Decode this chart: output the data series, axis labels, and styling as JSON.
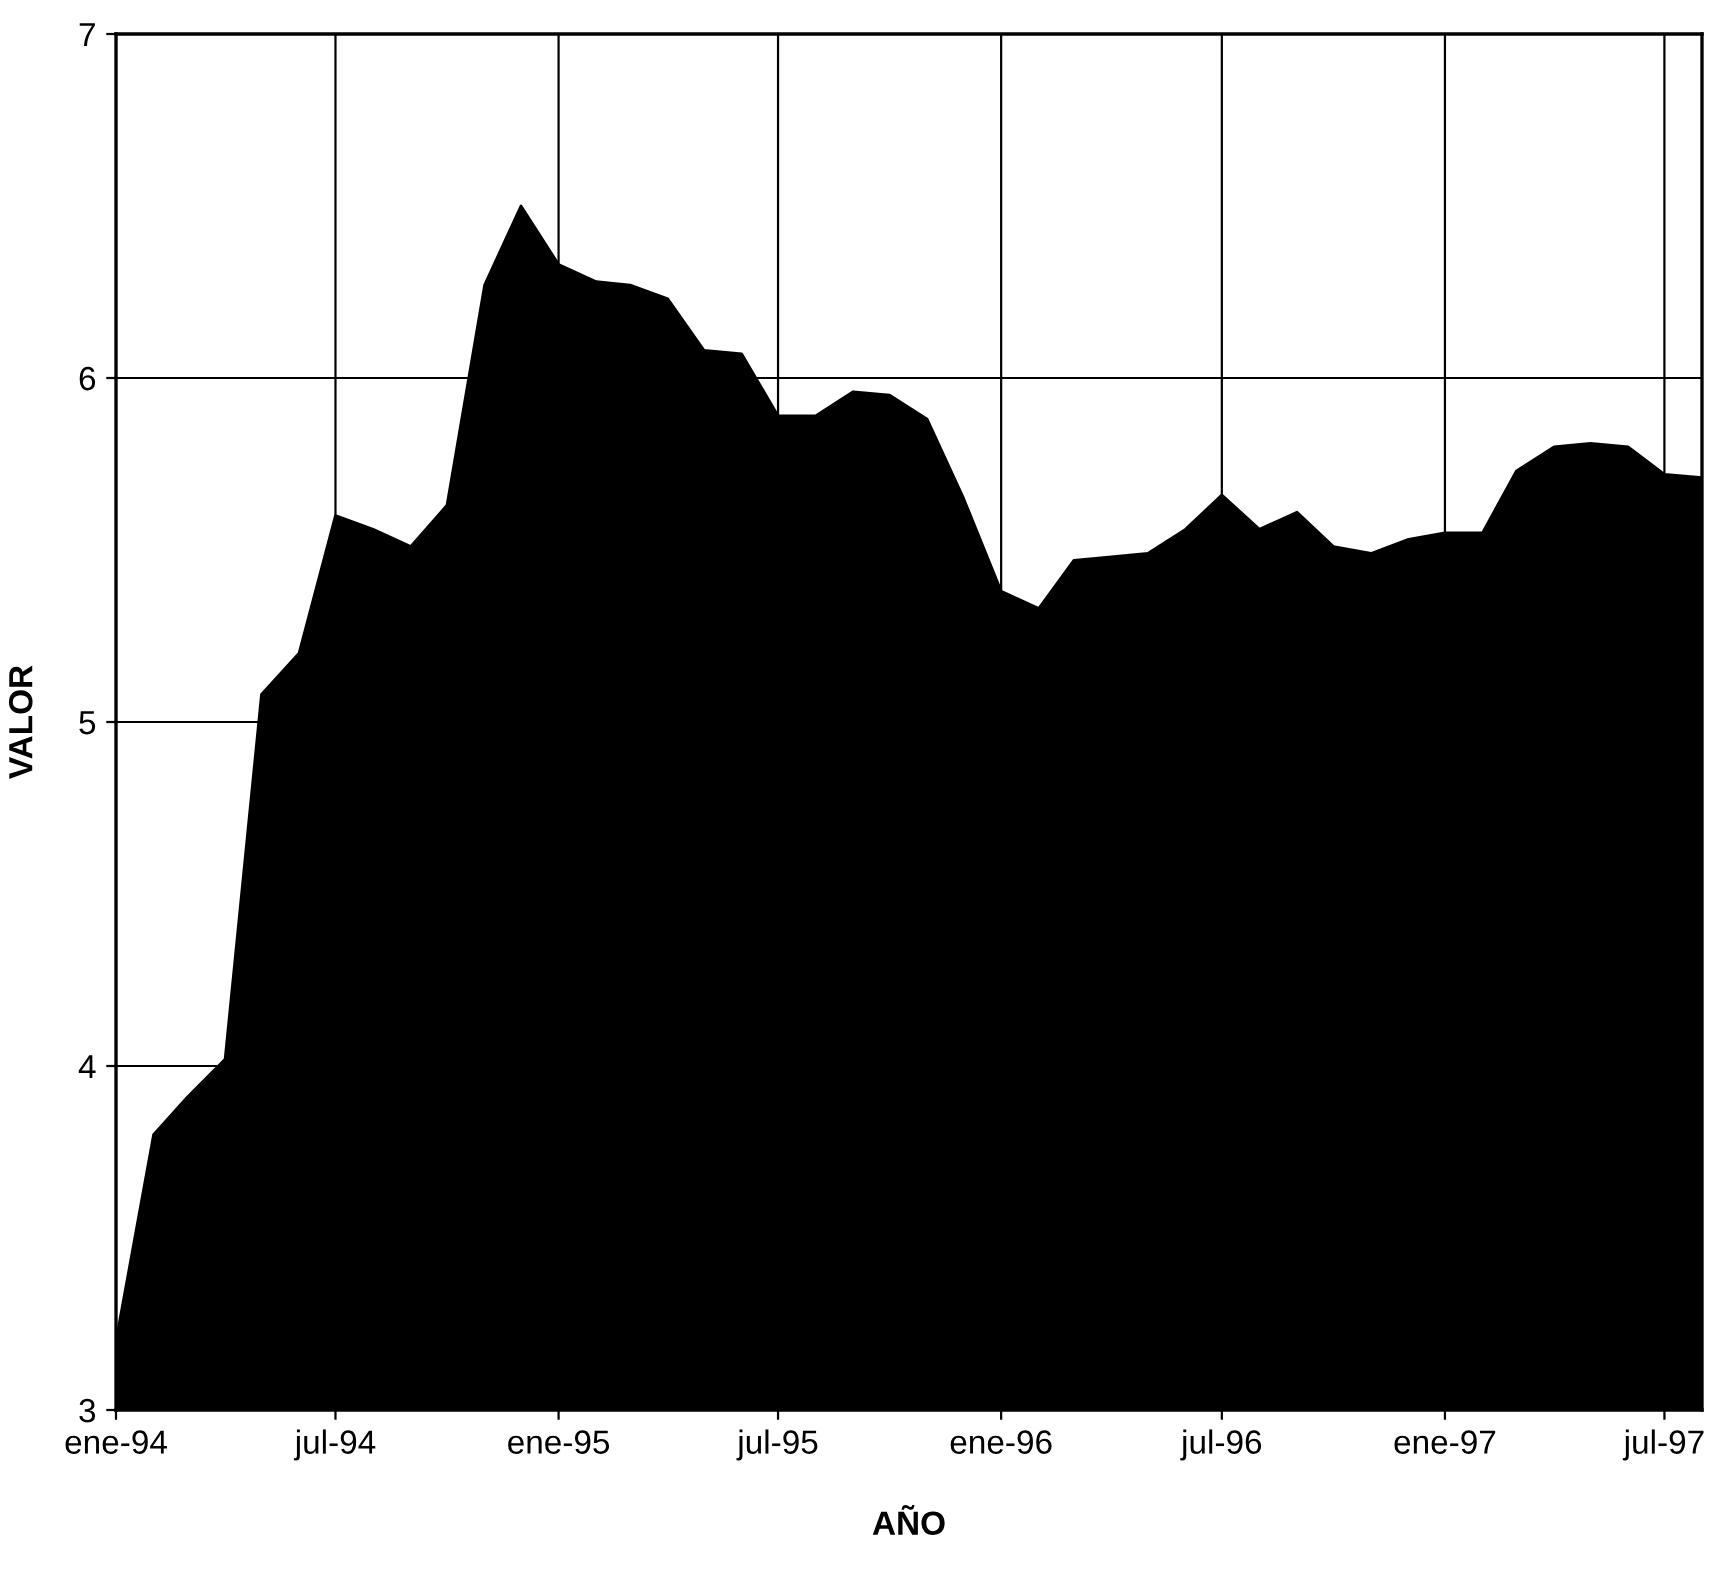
{
  "chart_data": {
    "type": "area",
    "xlabel": "AÑO",
    "ylabel": "VALOR",
    "x": [
      "1994-01",
      "1994-02",
      "1994-03",
      "1994-04",
      "1994-05",
      "1994-06",
      "1994-07",
      "1994-08",
      "1994-09",
      "1994-10",
      "1994-11",
      "1994-12",
      "1995-01",
      "1995-02",
      "1995-03",
      "1995-04",
      "1995-05",
      "1995-06",
      "1995-07",
      "1995-08",
      "1995-09",
      "1995-10",
      "1995-11",
      "1995-12",
      "1996-01",
      "1996-02",
      "1996-03",
      "1996-04",
      "1996-05",
      "1996-06",
      "1996-07",
      "1996-08",
      "1996-09",
      "1996-10",
      "1996-11",
      "1996-12",
      "1997-01",
      "1997-02",
      "1997-03",
      "1997-04",
      "1997-05",
      "1997-06",
      "1997-07",
      "1997-08"
    ],
    "series": [
      {
        "color": "#000000",
        "values": [
          3.2,
          3.8,
          3.91,
          4.02,
          5.08,
          5.2,
          5.6,
          5.56,
          5.51,
          5.63,
          6.27,
          6.5,
          6.33,
          6.28,
          6.27,
          6.23,
          6.08,
          6.07,
          5.89,
          5.89,
          5.96,
          5.95,
          5.88,
          5.65,
          5.38,
          5.33,
          5.47,
          5.48,
          5.49,
          5.56,
          5.66,
          5.56,
          5.61,
          5.51,
          5.49,
          5.53,
          5.55,
          5.55,
          5.73,
          5.8,
          5.81,
          5.8,
          5.72,
          5.71
        ]
      }
    ],
    "xlim": [
      "1994-01",
      "1997-08"
    ],
    "xticks": [
      {
        "value": "1994-01",
        "label": "ene-94"
      },
      {
        "value": "1994-07",
        "label": "jul-94"
      },
      {
        "value": "1995-01",
        "label": "ene-95"
      },
      {
        "value": "1995-07",
        "label": "jul-95"
      },
      {
        "value": "1996-01",
        "label": "ene-96"
      },
      {
        "value": "1996-07",
        "label": "jul-96"
      },
      {
        "value": "1997-01",
        "label": "ene-97"
      },
      {
        "value": "1997-07",
        "label": "jul-97"
      }
    ],
    "ylim": [
      3,
      7
    ],
    "yticks": [
      3,
      4,
      5,
      6,
      7
    ],
    "grid": true
  }
}
